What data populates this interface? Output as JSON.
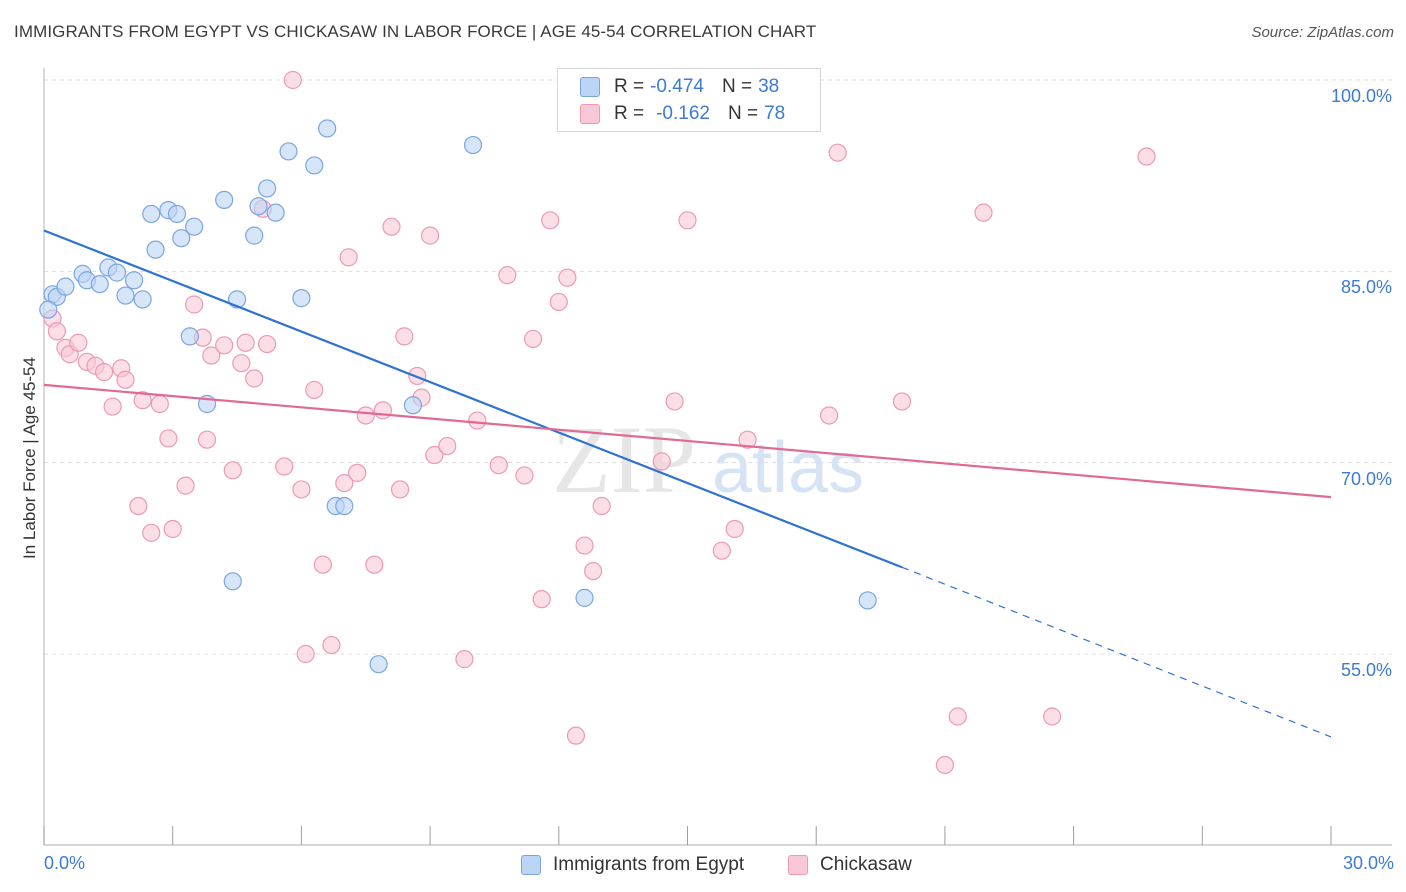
{
  "header": {
    "title": "IMMIGRANTS FROM EGYPT VS CHICKASAW IN LABOR FORCE | AGE 45-54 CORRELATION CHART",
    "source": "Source: ZipAtlas.com"
  },
  "legend_top": {
    "rows": [
      {
        "r_label": "R =",
        "r_value": "-0.474",
        "n_label": "N =",
        "n_value": "38"
      },
      {
        "r_label": "R =",
        "r_value": "-0.162",
        "n_label": "N =",
        "n_value": "78"
      }
    ]
  },
  "legend_bottom": {
    "items": [
      "Immigrants from Egypt",
      "Chickasaw"
    ]
  },
  "colors": {
    "egypt_fill": "#bcd4f5",
    "egypt_stroke": "#7aa6e0",
    "egypt_line": "#2f72d4",
    "chickasaw_fill": "#f9c8d6",
    "chickasaw_stroke": "#ec9ab3",
    "chickasaw_line": "#e06a94",
    "tick_label": "#3c7ad6",
    "grid": "#dddddd"
  },
  "watermark": {
    "zip": "ZIP",
    "atlas": "atlas"
  },
  "chart_data": {
    "type": "scatter",
    "title": "IMMIGRANTS FROM EGYPT VS CHICKASAW IN LABOR FORCE | AGE 45-54 CORRELATION CHART",
    "xlabel": "",
    "ylabel": "In Labor Force | Age 45-54",
    "xlim": [
      0,
      30
    ],
    "ylim": [
      43,
      102
    ],
    "x_tick_labels": [
      {
        "value": 0,
        "label": "0.0%"
      },
      {
        "value": 30,
        "label": "30.0%"
      }
    ],
    "x_minor_ticks": [
      0,
      3,
      6,
      9,
      12,
      15,
      18,
      21,
      24,
      27,
      30
    ],
    "y_ticks": [
      {
        "value": 55,
        "label": "55.0%"
      },
      {
        "value": 70,
        "label": "70.0%"
      },
      {
        "value": 85,
        "label": "85.0%"
      },
      {
        "value": 100,
        "label": "100.0%"
      }
    ],
    "grid": true,
    "legend_position": "bottom-center",
    "series": [
      {
        "name": "Immigrants from Egypt",
        "R": -0.474,
        "N": 38,
        "points": [
          [
            0.2,
            83.2
          ],
          [
            0.3,
            83.0
          ],
          [
            0.5,
            83.8
          ],
          [
            0.9,
            84.8
          ],
          [
            1.0,
            84.3
          ],
          [
            1.3,
            84.0
          ],
          [
            1.5,
            85.3
          ],
          [
            1.7,
            84.9
          ],
          [
            1.9,
            83.1
          ],
          [
            2.1,
            84.3
          ],
          [
            2.3,
            82.8
          ],
          [
            2.5,
            89.5
          ],
          [
            2.6,
            86.7
          ],
          [
            2.9,
            89.8
          ],
          [
            3.1,
            89.5
          ],
          [
            3.2,
            87.6
          ],
          [
            3.5,
            88.5
          ],
          [
            3.4,
            79.9
          ],
          [
            3.8,
            74.6
          ],
          [
            4.2,
            90.6
          ],
          [
            4.5,
            82.8
          ],
          [
            4.4,
            60.7
          ],
          [
            4.9,
            87.8
          ],
          [
            5.0,
            90.1
          ],
          [
            5.2,
            91.5
          ],
          [
            5.4,
            89.6
          ],
          [
            5.7,
            94.4
          ],
          [
            6.0,
            82.9
          ],
          [
            6.3,
            93.3
          ],
          [
            6.6,
            96.2
          ],
          [
            6.8,
            66.6
          ],
          [
            7.0,
            66.6
          ],
          [
            7.8,
            54.2
          ],
          [
            8.6,
            74.5
          ],
          [
            10.0,
            94.9
          ],
          [
            12.6,
            59.4
          ],
          [
            19.2,
            59.2
          ],
          [
            0.1,
            82.0
          ]
        ],
        "trend": {
          "x0": 0,
          "y0": 88.2,
          "x1": 20.0,
          "y1": 61.8,
          "dash_to_x": 30,
          "dash_to_y": 48.5
        }
      },
      {
        "name": "Chickasaw",
        "R": -0.162,
        "N": 78,
        "points": [
          [
            0.2,
            81.3
          ],
          [
            0.3,
            80.3
          ],
          [
            0.5,
            79.0
          ],
          [
            0.6,
            78.5
          ],
          [
            0.8,
            79.4
          ],
          [
            1.0,
            77.9
          ],
          [
            1.2,
            77.6
          ],
          [
            1.4,
            77.1
          ],
          [
            1.6,
            74.4
          ],
          [
            1.8,
            77.4
          ],
          [
            1.9,
            76.5
          ],
          [
            2.2,
            66.6
          ],
          [
            2.3,
            74.9
          ],
          [
            2.5,
            64.5
          ],
          [
            2.7,
            74.6
          ],
          [
            2.9,
            71.9
          ],
          [
            3.0,
            64.8
          ],
          [
            3.3,
            68.2
          ],
          [
            3.5,
            82.4
          ],
          [
            3.7,
            79.8
          ],
          [
            3.8,
            71.8
          ],
          [
            3.9,
            78.4
          ],
          [
            4.2,
            79.2
          ],
          [
            4.4,
            69.4
          ],
          [
            4.6,
            77.8
          ],
          [
            4.7,
            79.4
          ],
          [
            4.9,
            76.6
          ],
          [
            5.1,
            89.9
          ],
          [
            5.2,
            79.3
          ],
          [
            5.6,
            69.7
          ],
          [
            5.8,
            100.0
          ],
          [
            6.0,
            67.9
          ],
          [
            6.1,
            55.0
          ],
          [
            6.3,
            75.7
          ],
          [
            6.5,
            62.0
          ],
          [
            6.7,
            55.7
          ],
          [
            7.0,
            68.4
          ],
          [
            7.1,
            86.1
          ],
          [
            7.3,
            69.2
          ],
          [
            7.5,
            73.7
          ],
          [
            7.7,
            62.0
          ],
          [
            7.9,
            74.1
          ],
          [
            8.1,
            88.5
          ],
          [
            8.3,
            67.9
          ],
          [
            8.4,
            79.9
          ],
          [
            8.7,
            76.8
          ],
          [
            8.8,
            75.1
          ],
          [
            9.0,
            87.8
          ],
          [
            9.1,
            70.6
          ],
          [
            9.4,
            71.3
          ],
          [
            9.8,
            54.6
          ],
          [
            10.1,
            73.3
          ],
          [
            10.6,
            69.8
          ],
          [
            10.8,
            84.7
          ],
          [
            11.2,
            69.0
          ],
          [
            11.4,
            79.7
          ],
          [
            11.6,
            59.3
          ],
          [
            11.8,
            89.0
          ],
          [
            12.0,
            82.6
          ],
          [
            12.2,
            84.5
          ],
          [
            12.4,
            48.6
          ],
          [
            12.6,
            63.5
          ],
          [
            12.8,
            61.5
          ],
          [
            13.0,
            66.6
          ],
          [
            14.4,
            70.1
          ],
          [
            14.7,
            74.8
          ],
          [
            15.0,
            89.0
          ],
          [
            15.8,
            63.1
          ],
          [
            16.1,
            64.8
          ],
          [
            16.4,
            71.8
          ],
          [
            18.3,
            73.7
          ],
          [
            18.5,
            94.3
          ],
          [
            20.0,
            74.8
          ],
          [
            21.0,
            46.3
          ],
          [
            21.3,
            50.1
          ],
          [
            21.9,
            89.6
          ],
          [
            23.5,
            50.1
          ],
          [
            25.7,
            94.0
          ]
        ],
        "trend": {
          "x0": 0,
          "y0": 76.1,
          "x1": 30,
          "y1": 67.3
        }
      }
    ]
  }
}
